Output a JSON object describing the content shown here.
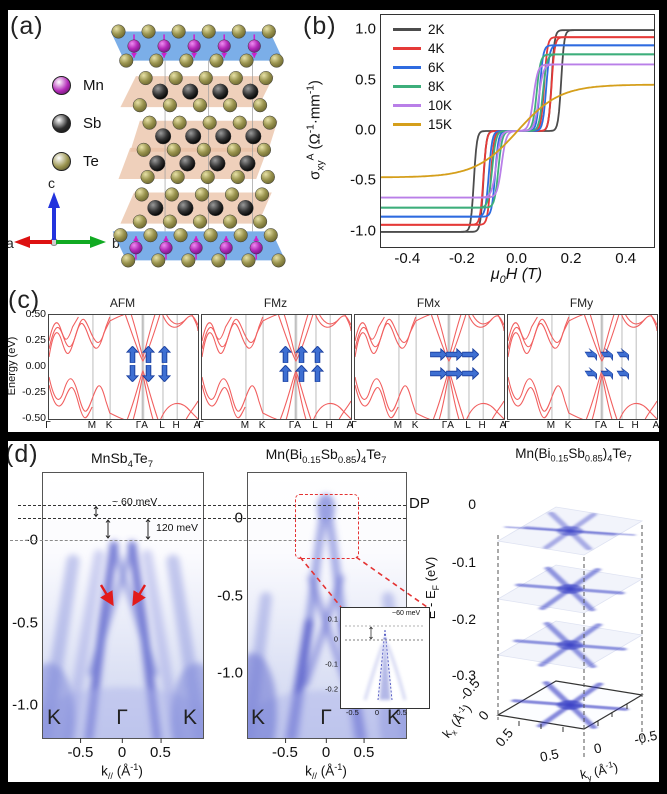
{
  "figure": {
    "panel_labels": {
      "a": "(a)",
      "b": "(b)",
      "c": "(c)",
      "d": "(d)"
    },
    "crystal": {
      "legend": [
        {
          "element": "Mn",
          "color": "#b32ab8"
        },
        {
          "element": "Sb",
          "color": "#2b2b2b"
        },
        {
          "element": "Te",
          "color": "#9a944f"
        }
      ],
      "axes": {
        "a": "a",
        "b": "b",
        "c": "c"
      }
    }
  },
  "chart_data": [
    {
      "id": "anomalous-hall-conductivity",
      "type": "line",
      "title": "",
      "xlabel": "μ_{0}H (T)",
      "ylabel": "σ_{xy}^{A} (Ω^{-1}·mm^{-1})",
      "xlim": [
        -0.5,
        0.5
      ],
      "ylim": [
        -1.15,
        1.15
      ],
      "xticks": [
        "-0.4",
        "-0.2",
        "0.0",
        "0.2",
        "0.4"
      ],
      "yticks": [
        "1.0",
        "0.5",
        "0.0",
        "-0.5",
        "-1.0"
      ],
      "grid": false,
      "legend_position": "top-left",
      "series": [
        {
          "name": "2K",
          "color": "#4c4c4c",
          "saturation": 1.0,
          "flip_up": 0.16,
          "flip_down": 0.125,
          "sharpness": 90,
          "shape": "double-step"
        },
        {
          "name": "4K",
          "color": "#e53a38",
          "saturation": 0.93,
          "flip_up": 0.125,
          "flip_down": 0.098,
          "sharpness": 85,
          "shape": "double-step"
        },
        {
          "name": "6K",
          "color": "#2e6be0",
          "saturation": 0.85,
          "flip_up": 0.105,
          "flip_down": 0.082,
          "sharpness": 80,
          "shape": "double-step"
        },
        {
          "name": "8K",
          "color": "#3dae7b",
          "saturation": 0.76,
          "flip_up": 0.093,
          "flip_down": 0.07,
          "sharpness": 70,
          "shape": "double-step"
        },
        {
          "name": "10K",
          "color": "#b97fe8",
          "saturation": 0.66,
          "flip_up": 0.078,
          "flip_down": 0.058,
          "sharpness": 60,
          "shape": "double-step"
        },
        {
          "name": "15K",
          "color": "#d59f1b",
          "saturation": 0.46,
          "width": 0.155,
          "shape": "smooth"
        }
      ]
    },
    {
      "id": "band-structures",
      "type": "line",
      "ylabel": "Energy (eV)",
      "ylim": [
        -0.5,
        0.5
      ],
      "yticks": [
        "0.50",
        "0.25",
        "0.00",
        "-0.25",
        "-0.50"
      ],
      "kpath": [
        "Γ",
        "M",
        "K",
        "ΓA",
        "L",
        "H",
        "A"
      ],
      "band_color": "#f15f5f",
      "panels": [
        {
          "title": "AFM",
          "spin_rows": [
            "up",
            "down"
          ]
        },
        {
          "title": "FMz",
          "spin_rows": [
            "up",
            "up"
          ]
        },
        {
          "title": "FMx",
          "spin_rows": [
            "right",
            "right"
          ]
        },
        {
          "title": "FMy",
          "spin_rows": [
            "flat",
            "flat"
          ]
        }
      ]
    },
    {
      "id": "arpes-dispersion-maps",
      "type": "heatmap",
      "shared_annotations": {
        "gap_top": "~ 60 meV",
        "gap_bottom": "120 meV",
        "dp": "DP"
      },
      "panels": [
        {
          "title": "MnSb_{4}Te_{7}",
          "xlabel": "k_{//} (Å^{-1})",
          "xticks": [
            "-0.5",
            "0",
            "0.5"
          ],
          "yticks": [
            "-0",
            "-0.5",
            "-1.0"
          ],
          "hs_points": [
            "K",
            "Γ",
            "K"
          ]
        },
        {
          "title": "Mn(Bi_{0.15}Sb_{0.85})_{4}Te_{7}",
          "xlabel": "k_{//} (Å^{-1})",
          "xticks": [
            "-0.5",
            "0",
            "0.5"
          ],
          "yticks": [
            "0",
            "-0.5",
            "-1.0"
          ],
          "hs_points": [
            "K",
            "Γ",
            "K"
          ],
          "inset": {
            "annotation": "~60 meV",
            "yticks": [
              "0.1",
              "0",
              "-0.1",
              "-0.2"
            ],
            "xticks": [
              "-0.5",
              "0",
              "0.5"
            ]
          }
        }
      ]
    },
    {
      "id": "constant-energy-maps",
      "type": "heatmap",
      "title": "Mn(Bi_{0.15}Sb_{0.85})_{4}Te_{7}",
      "zlabel": "E - E_{F} (eV)",
      "zticks": [
        "0",
        "-0.1",
        "-0.2",
        "-0.3"
      ],
      "xlabel": "k_{x} (Å^{-1})",
      "xticks": [
        "-0.5",
        "0",
        "0.5"
      ],
      "ylabel": "k_{y} (Å^{-1})",
      "yticks": [
        "0.5",
        "0",
        "-0.5"
      ],
      "slices_energy": [
        "0",
        "-0.1",
        "-0.2",
        "-0.3"
      ]
    }
  ]
}
